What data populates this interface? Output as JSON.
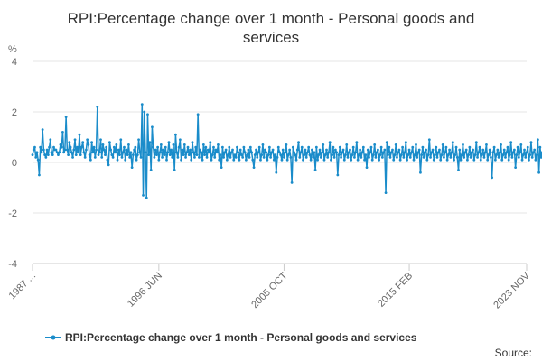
{
  "chart_data": {
    "type": "line",
    "title_lines": [
      "RPI:Percentage change over 1 month - Personal goods and",
      "services"
    ],
    "ylabel": "%",
    "ylim": [
      -4,
      4
    ],
    "yticks": [
      "4",
      "2",
      "0",
      "-2",
      "-4"
    ],
    "ytick_values": [
      4,
      2,
      0,
      -2,
      -4
    ],
    "xlim": [
      "1987-01",
      "2023-11"
    ],
    "xtick_labels": [
      "1987 ...",
      "1996 JUN",
      "2005 OCT",
      "2015 FEB",
      "2023 NOV"
    ],
    "xtick_positions": [
      "1987-01",
      "1996-06",
      "2005-10",
      "2015-02",
      "2023-11"
    ],
    "grid": true,
    "legend_position": "bottom",
    "series": [
      {
        "name": "RPI:Percentage change over 1 month - Personal goods and services",
        "color": "#1a8cca",
        "start": "1987-01",
        "frequency": "monthly",
        "values": [
          0.3,
          0.5,
          0.6,
          0.2,
          0.4,
          0.1,
          -0.5,
          0.6,
          0.4,
          1.3,
          0.5,
          0.3,
          0.2,
          0.5,
          0.3,
          0.6,
          0.9,
          0.4,
          0.3,
          0.6,
          0.5,
          0.5,
          0.4,
          0.3,
          0.4,
          0.7,
          0.6,
          1.2,
          0.4,
          0.5,
          1.8,
          0.5,
          0.3,
          0.8,
          0.6,
          0.4,
          0.2,
          0.5,
          0.9,
          0.3,
          0.6,
          0.4,
          1.1,
          0.3,
          0.6,
          0.8,
          0.4,
          0.2,
          0.5,
          0.9,
          0.7,
          0.3,
          0.1,
          0.8,
          0.4,
          0.6,
          0.2,
          0.5,
          2.2,
          0.3,
          0.4,
          0.9,
          0.2,
          0.7,
          0.5,
          0.3,
          0.6,
          0.1,
          -0.1,
          0.8,
          0.5,
          0.3,
          0.2,
          0.6,
          0.4,
          0.7,
          0.1,
          0.5,
          0.3,
          0.9,
          0.2,
          0.4,
          0.6,
          0.1,
          0.5,
          0.3,
          0.7,
          0.2,
          0.4,
          -0.2,
          0.3,
          0.5,
          0.6,
          0.1,
          0.3,
          0.9,
          0.4,
          0.2,
          2.3,
          -1.3,
          2.0,
          0.4,
          -1.4,
          1.9,
          0.3,
          0.8,
          -0.3,
          1.4,
          0.6,
          0.2,
          0.5,
          0.3,
          0.6,
          0.1,
          0.4,
          0.7,
          0.2,
          0.5,
          0.3,
          0.6,
          0.1,
          0.4,
          0.8,
          0.3,
          0.5,
          0.2,
          0.7,
          -0.3,
          1.1,
          0.4,
          0.2,
          0.6,
          0.9,
          0.1,
          0.5,
          0.3,
          0.7,
          0.2,
          0.4,
          0.6,
          0.3,
          0.5,
          0.1,
          0.8,
          0.4,
          0.2,
          0.6,
          0.3,
          1.9,
          0.2,
          0.5,
          0.4,
          0.1,
          0.7,
          0.3,
          0.6,
          0.2,
          0.5,
          0.4,
          0.8,
          0.1,
          0.3,
          0.6,
          0.2,
          0.5,
          0.4,
          0.7,
          0.1,
          0.3,
          -0.2,
          0.6,
          0.2,
          0.4,
          0.5,
          0.1,
          0.3,
          0.6,
          0.2,
          0.4,
          0.5,
          0.1,
          0.3,
          0.2,
          0.6,
          0.4,
          0.1,
          0.5,
          0.3,
          0.2,
          0.6,
          0.4,
          0.1,
          0.3,
          0.5,
          0.2,
          0.6,
          0.4,
          0.1,
          -0.2,
          0.3,
          0.5,
          0.2,
          0.4,
          0.6,
          0.1,
          0.3,
          0.7,
          0.2,
          0.5,
          0.4,
          0.1,
          0.3,
          0.6,
          0.2,
          0.4,
          0.5,
          0.1,
          0.3,
          -0.4,
          0.2,
          0.6,
          0.4,
          0.3,
          0.1,
          0.5,
          0.2,
          0.4,
          0.7,
          0.1,
          0.3,
          0.5,
          0.2,
          -0.8,
          0.6,
          0.4,
          0.3,
          0.1,
          0.5,
          0.8,
          0.2,
          0.4,
          0.6,
          0.1,
          0.3,
          0.5,
          0.2,
          0.4,
          0.6,
          0.3,
          0.1,
          0.5,
          0.2,
          0.4,
          -0.3,
          0.6,
          0.1,
          0.3,
          0.5,
          0.2,
          0.4,
          0.7,
          0.1,
          0.3,
          0.5,
          0.2,
          0.4,
          0.8,
          0.1,
          0.3,
          0.6,
          0.2,
          0.5,
          0.4,
          -0.5,
          0.3,
          0.6,
          0.2,
          0.4,
          0.5,
          0.1,
          0.3,
          0.7,
          0.2,
          0.4,
          0.5,
          0.1,
          0.3,
          0.6,
          0.2,
          0.4,
          0.8,
          0.1,
          0.3,
          0.5,
          0.2,
          0.4,
          0.6,
          0.1,
          0.3,
          -0.2,
          0.5,
          0.2,
          0.4,
          0.6,
          0.1,
          0.3,
          0.7,
          0.2,
          0.4,
          0.5,
          0.1,
          0.3,
          0.6,
          0.2,
          0.4,
          0.5,
          -1.2,
          0.8,
          0.3,
          0.6,
          0.2,
          0.4,
          0.5,
          0.1,
          0.3,
          0.7,
          0.2,
          0.4,
          0.5,
          0.1,
          0.3,
          0.6,
          0.2,
          0.4,
          0.8,
          0.1,
          0.3,
          0.5,
          0.2,
          0.4,
          0.6,
          0.1,
          0.3,
          0.7,
          0.2,
          0.4,
          0.5,
          -0.4,
          0.3,
          0.6,
          0.2,
          0.4,
          0.5,
          0.1,
          0.3,
          0.9,
          0.2,
          0.4,
          0.5,
          0.1,
          0.3,
          0.6,
          0.2,
          0.4,
          0.5,
          0.1,
          0.3,
          0.7,
          0.2,
          0.4,
          0.6,
          0.1,
          0.3,
          0.5,
          0.2,
          0.4,
          0.8,
          0.1,
          0.3,
          0.6,
          0.2,
          -0.3,
          0.5,
          0.1,
          0.3,
          0.7,
          0.2,
          0.4,
          0.5,
          0.1,
          0.3,
          0.6,
          0.2,
          0.4,
          0.5,
          0.1,
          0.3,
          0.8,
          0.2,
          0.4,
          0.6,
          0.1,
          0.3,
          0.5,
          0.2,
          0.4,
          0.7,
          0.1,
          0.3,
          0.5,
          0.2,
          -0.6,
          0.4,
          0.6,
          0.1,
          0.3,
          0.5,
          0.2,
          0.4,
          0.7,
          0.1,
          0.3,
          0.5,
          0.2,
          0.4,
          0.6,
          0.1,
          0.3,
          0.8,
          0.2,
          0.4,
          0.5,
          -0.2,
          0.3,
          0.6,
          0.2,
          0.4,
          0.7,
          0.1,
          0.3,
          0.5,
          0.2,
          0.4,
          0.6,
          0.1,
          0.3,
          0.8,
          0.2,
          0.4,
          0.5,
          0.1,
          0.3,
          0.9,
          -0.4,
          0.6,
          0.2,
          0.4,
          0.5,
          0.1,
          0.3,
          0.7,
          0.2,
          0.4,
          0.6,
          0.1,
          0.3,
          0.5,
          -0.1,
          0.8,
          0.4,
          0.6,
          1.1,
          0.3,
          0.5,
          0.2,
          0.7,
          0.4,
          0.9,
          -0.6,
          0.5,
          0.3,
          0.8,
          1.0,
          0.4,
          0.6,
          0.2,
          0.9,
          0.7,
          0.3,
          0.5,
          0.1,
          0.6,
          0.8,
          0.4,
          0.2,
          0.5,
          0.7,
          0.3,
          0.6,
          0.4,
          -0.1
        ]
      }
    ],
    "source_label": "Source:"
  }
}
